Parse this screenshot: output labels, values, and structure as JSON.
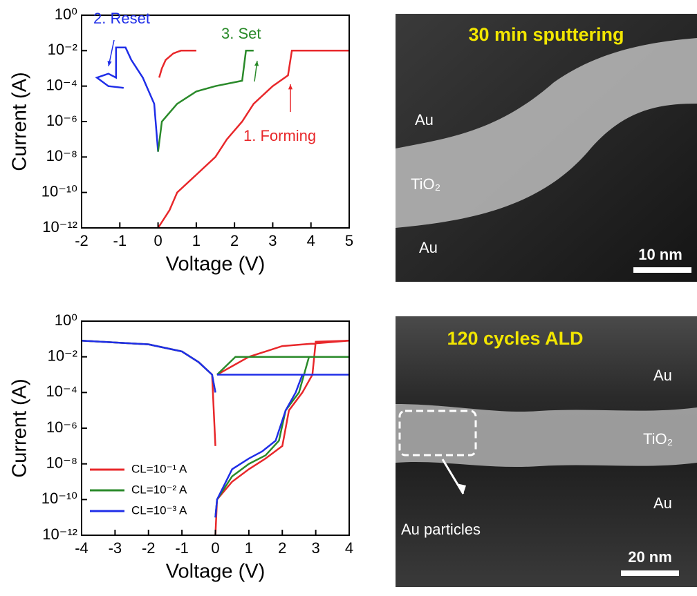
{
  "chart_data": [
    {
      "type": "line",
      "yscale": "log",
      "x_label": "Voltage (V)",
      "y_label": "Current (A)",
      "xlim": [
        -2,
        5
      ],
      "xticks": [
        -2,
        -1,
        0,
        1,
        2,
        3,
        4,
        5
      ],
      "ylim": [
        1e-12,
        1
      ],
      "yticks": [
        {
          "value": 1,
          "label": "10⁰"
        },
        {
          "value": 0.01,
          "label": "10⁻²"
        },
        {
          "value": 0.0001,
          "label": "10⁻⁴"
        },
        {
          "value": 1e-06,
          "label": "10⁻⁶"
        },
        {
          "value": 1e-08,
          "label": "10⁻⁸"
        },
        {
          "value": 1e-10,
          "label": "10⁻¹⁰"
        },
        {
          "value": 1e-12,
          "label": "10⁻¹²"
        }
      ],
      "series": [
        {
          "color": "#e8272a",
          "x": [
            0,
            0.3,
            0.5,
            1,
            1.5,
            1.8,
            2.2,
            2.5,
            3,
            3.4,
            3.5,
            5,
            null,
            0.03,
            0.1,
            0.2,
            0.4,
            0.6,
            1
          ],
          "values": [
            1e-12,
            1e-11,
            1e-10,
            1e-09,
            1e-08,
            1e-07,
            1e-06,
            1e-05,
            0.0001,
            0.0004,
            0.01,
            0.01,
            null,
            0.0003,
            0.001,
            0.003,
            0.007,
            0.01,
            0.01
          ]
        },
        {
          "color": "#1f2ee8",
          "x": [
            0,
            -0.1,
            -0.4,
            -0.7,
            -0.85,
            -1.1,
            -1.1,
            -1.3,
            -1.6,
            -1.3,
            -0.9
          ],
          "values": [
            2e-08,
            1e-05,
            0.0003,
            0.003,
            0.015,
            0.015,
            0.0003,
            0.0005,
            0.0003,
            0.0001,
            8e-05
          ]
        },
        {
          "color": "#2a8a2a",
          "x": [
            0,
            0.1,
            0.5,
            1,
            1.5,
            2.2,
            2.3,
            2.5
          ],
          "values": [
            2e-08,
            1e-06,
            1e-05,
            5e-05,
            0.0001,
            0.0002,
            0.01,
            0.01
          ]
        }
      ],
      "annotations": [
        {
          "text": "2. Reset",
          "color": "#1f2ee8"
        },
        {
          "text": "3. Set",
          "color": "#2a8a2a"
        },
        {
          "text": "1. Forming",
          "color": "#e8272a"
        }
      ]
    },
    {
      "type": "line",
      "yscale": "log",
      "x_label": "Voltage (V)",
      "y_label": "Current (A)",
      "xlim": [
        -4,
        4
      ],
      "xticks": [
        -4,
        -3,
        -2,
        -1,
        0,
        1,
        2,
        3,
        4
      ],
      "ylim": [
        1e-12,
        1
      ],
      "yticks": [
        {
          "value": 1,
          "label": "10⁰"
        },
        {
          "value": 0.01,
          "label": "10⁻²"
        },
        {
          "value": 0.0001,
          "label": "10⁻⁴"
        },
        {
          "value": 1e-06,
          "label": "10⁻⁶"
        },
        {
          "value": 1e-08,
          "label": "10⁻⁸"
        },
        {
          "value": 1e-10,
          "label": "10⁻¹⁰"
        },
        {
          "value": 1e-12,
          "label": "10⁻¹²"
        }
      ],
      "legend": "lower left",
      "series": [
        {
          "name": "CL=10⁻¹ A",
          "color": "#e8272a",
          "x": [
            -4,
            -2,
            -1,
            -0.5,
            -0.1,
            0,
            null,
            0,
            0.05,
            0.5,
            1,
            1.5,
            2,
            2.2,
            2.6,
            2.9,
            3,
            4,
            null,
            0.05,
            1,
            2,
            4
          ],
          "values": [
            0.08,
            0.05,
            0.02,
            0.005,
            0.001,
            1e-07,
            null,
            1e-12,
            1e-10,
            1e-09,
            5e-09,
            2e-08,
            1e-07,
            1e-05,
            0.0001,
            0.001,
            0.07,
            0.08,
            null,
            0.001,
            0.01,
            0.04,
            0.08
          ]
        },
        {
          "name": "CL=10⁻² A",
          "color": "#2a8a2a",
          "x": [
            -4,
            -2,
            -1,
            -0.5,
            -0.1,
            0,
            null,
            0,
            0.05,
            0.5,
            1,
            1.5,
            1.9,
            2.1,
            2.5,
            2.8,
            4,
            null,
            0.05,
            0.6,
            4
          ],
          "values": [
            0.08,
            0.05,
            0.02,
            0.005,
            0.001,
            0.0001,
            null,
            1e-11,
            1e-10,
            2e-09,
            1e-08,
            3e-08,
            2e-07,
            1e-05,
            0.0001,
            0.01,
            0.01,
            null,
            0.001,
            0.01,
            0.01
          ]
        },
        {
          "name": "CL=10⁻³ A",
          "color": "#1f2ee8",
          "x": [
            -4,
            -2,
            -1,
            -0.5,
            -0.1,
            0,
            null,
            0,
            0.05,
            0.5,
            1,
            1.4,
            1.8,
            2.1,
            2.4,
            2.6,
            4,
            null,
            0.05,
            4
          ],
          "values": [
            0.08,
            0.05,
            0.02,
            0.005,
            0.001,
            0.0001,
            null,
            1e-11,
            1e-10,
            5e-09,
            2e-08,
            5e-08,
            2e-07,
            1e-05,
            0.0001,
            0.001,
            0.001,
            null,
            0.001,
            0.001
          ]
        }
      ]
    }
  ],
  "images": [
    {
      "title": "30 min sputtering",
      "labels": [
        "Au",
        "TiO₂",
        "Au"
      ],
      "scale_bar": "10 nm"
    },
    {
      "title": "120 cycles ALD",
      "labels": [
        "Au",
        "TiO₂",
        "Au",
        "Au particles"
      ],
      "scale_bar": "20 nm"
    }
  ]
}
